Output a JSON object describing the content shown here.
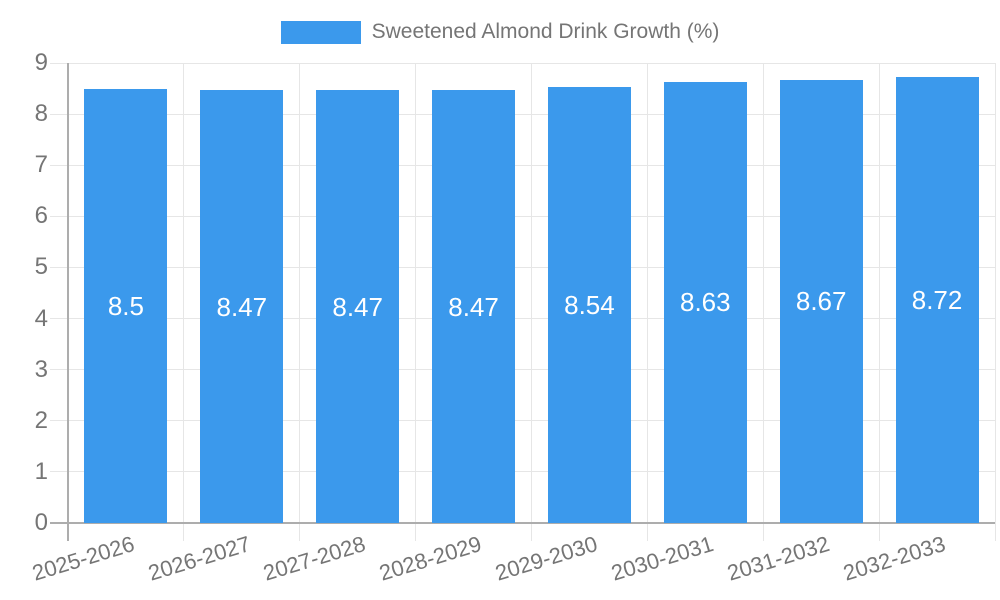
{
  "legend": {
    "label": "Sweetened Almond Drink Growth (%)"
  },
  "colors": {
    "bar": "#3B99EC",
    "axis_text": "#757575",
    "grid_line": "#E6E6E6",
    "axis_line": "#ADADAD",
    "value_label": "#FFFFFF",
    "background": "#FFFFFF"
  },
  "chart_data": {
    "type": "bar",
    "title": "Sweetened Almond Drink Growth (%)",
    "categories": [
      "2025-2026",
      "2026-2027",
      "2027-2028",
      "2028-2029",
      "2029-2030",
      "2030-2031",
      "2031-2032",
      "2032-2033"
    ],
    "values": [
      8.5,
      8.47,
      8.47,
      8.47,
      8.54,
      8.63,
      8.67,
      8.72
    ],
    "value_labels": [
      "8.5",
      "8.47",
      "8.47",
      "8.47",
      "8.54",
      "8.63",
      "8.67",
      "8.72"
    ],
    "xlabel": "",
    "ylabel": "",
    "ylim": [
      0,
      9
    ],
    "y_ticks": [
      0,
      1,
      2,
      3,
      4,
      5,
      6,
      7,
      8,
      9
    ],
    "grid": true,
    "legend_position": "top",
    "bar_label_position": "center"
  }
}
